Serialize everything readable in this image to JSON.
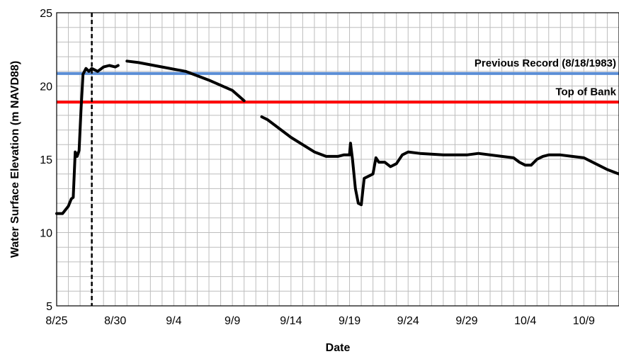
{
  "chart_data": {
    "type": "line",
    "xlabel": "Date",
    "ylabel": "Water Surface Elevation (m NAVD88)",
    "xlim": [
      "2017-08-25",
      "2017-10-12"
    ],
    "ylim": [
      5,
      25
    ],
    "x_tick_labels": [
      "8/25",
      "8/30",
      "9/4",
      "9/9",
      "9/14",
      "9/19",
      "9/24",
      "9/29",
      "10/4",
      "10/9"
    ],
    "y_tick_labels": [
      "5",
      "10",
      "15",
      "20",
      "25"
    ],
    "grid": true,
    "reference_lines": [
      {
        "label": "Previous Record (8/18/1983)",
        "y": 20.85,
        "color": "#5b8ed6"
      },
      {
        "label": "Top of Bank",
        "y": 18.9,
        "color": "#ff0000"
      }
    ],
    "event_marker": {
      "x": "2017-08-28",
      "style": "dashed",
      "color": "#000000"
    },
    "series": [
      {
        "color": "#000000",
        "segments": [
          [
            [
              "2017-08-25",
              11.3
            ],
            [
              "2017-08-25 12:00",
              11.3
            ],
            [
              "2017-08-26",
              11.8
            ],
            [
              "2017-08-26 06:00",
              12.3
            ],
            [
              "2017-08-26 10:00",
              12.4
            ],
            [
              "2017-08-26 14:00",
              15.5
            ],
            [
              "2017-08-26 18:00",
              15.2
            ],
            [
              "2017-08-26 22:00",
              15.6
            ],
            [
              "2017-08-27 02:00",
              18.5
            ],
            [
              "2017-08-27 06:00",
              20.8
            ],
            [
              "2017-08-27 12:00",
              21.2
            ],
            [
              "2017-08-27 18:00",
              21.0
            ],
            [
              "2017-08-28",
              21.2
            ],
            [
              "2017-08-28 12:00",
              21.0
            ],
            [
              "2017-08-29",
              21.3
            ],
            [
              "2017-08-29 12:00",
              21.4
            ],
            [
              "2017-08-30",
              21.3
            ],
            [
              "2017-08-30 06:00",
              21.4
            ]
          ],
          [
            [
              "2017-08-31",
              21.7
            ],
            [
              "2017-09-01",
              21.6
            ],
            [
              "2017-09-03",
              21.3
            ],
            [
              "2017-09-05",
              21.0
            ],
            [
              "2017-09-07",
              20.4
            ],
            [
              "2017-09-09",
              19.7
            ],
            [
              "2017-09-10",
              19.0
            ]
          ],
          [
            [
              "2017-09-11 12:00",
              17.9
            ],
            [
              "2017-09-12",
              17.7
            ],
            [
              "2017-09-14",
              16.5
            ],
            [
              "2017-09-16",
              15.5
            ],
            [
              "2017-09-17",
              15.2
            ],
            [
              "2017-09-18",
              15.2
            ],
            [
              "2017-09-18 12:00",
              15.3
            ],
            [
              "2017-09-19",
              15.3
            ],
            [
              "2017-09-19 02:00",
              16.1
            ],
            [
              "2017-09-19 06:00",
              15.0
            ],
            [
              "2017-09-19 12:00",
              13.0
            ],
            [
              "2017-09-19 18:00",
              12.0
            ],
            [
              "2017-09-20",
              11.9
            ],
            [
              "2017-09-20 06:00",
              13.7
            ],
            [
              "2017-09-20 18:00",
              13.9
            ],
            [
              "2017-09-21",
              14.0
            ],
            [
              "2017-09-21 06:00",
              15.1
            ],
            [
              "2017-09-21 12:00",
              14.8
            ],
            [
              "2017-09-22",
              14.8
            ],
            [
              "2017-09-22 12:00",
              14.5
            ],
            [
              "2017-09-23",
              14.7
            ],
            [
              "2017-09-23 12:00",
              15.3
            ],
            [
              "2017-09-24",
              15.5
            ],
            [
              "2017-09-25",
              15.4
            ],
            [
              "2017-09-27",
              15.3
            ],
            [
              "2017-09-29",
              15.3
            ],
            [
              "2017-09-30",
              15.4
            ],
            [
              "2017-10-02",
              15.2
            ],
            [
              "2017-10-03",
              15.1
            ],
            [
              "2017-10-03 12:00",
              14.8
            ],
            [
              "2017-10-04",
              14.6
            ],
            [
              "2017-10-04 12:00",
              14.6
            ],
            [
              "2017-10-05",
              15.0
            ],
            [
              "2017-10-05 12:00",
              15.2
            ],
            [
              "2017-10-06",
              15.3
            ],
            [
              "2017-10-07",
              15.3
            ],
            [
              "2017-10-08",
              15.2
            ],
            [
              "2017-10-09",
              15.1
            ],
            [
              "2017-10-10",
              14.7
            ],
            [
              "2017-10-11",
              14.3
            ],
            [
              "2017-10-12",
              14.0
            ]
          ]
        ]
      }
    ]
  }
}
